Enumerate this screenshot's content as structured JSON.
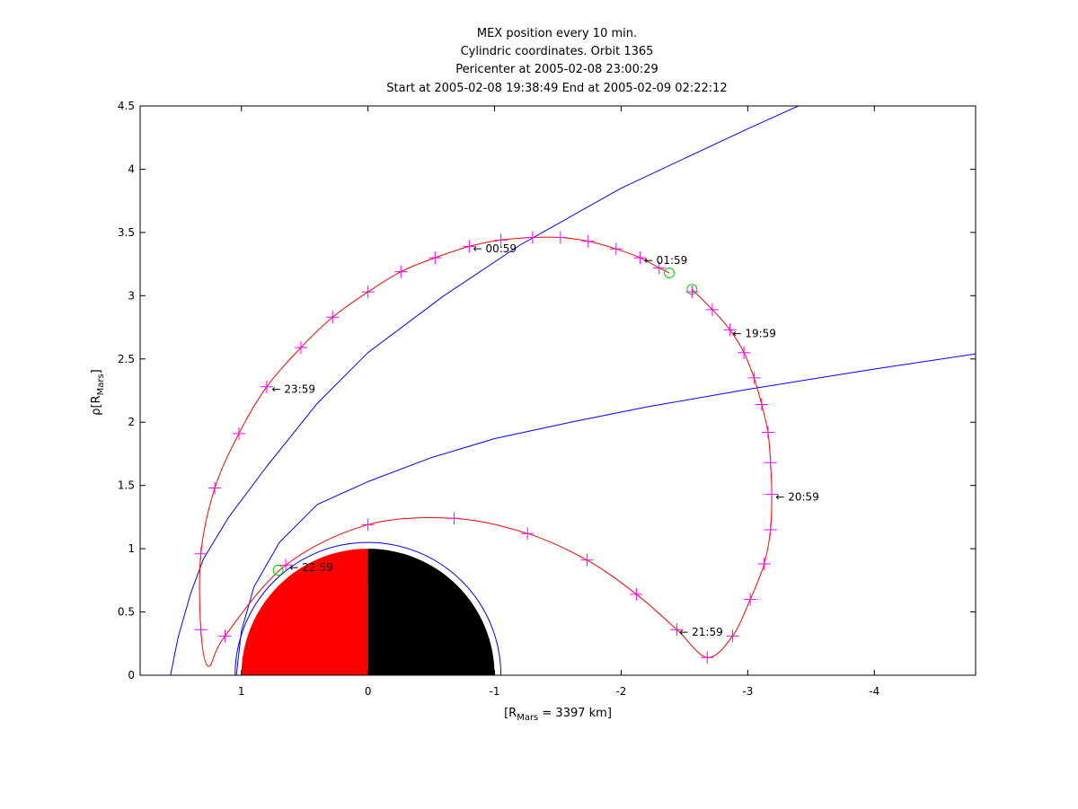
{
  "chart_data": {
    "type": "line",
    "title_lines": [
      "MEX position every 10 min.",
      "Cylindric coordinates. Orbit 1365",
      "Pericenter at 2005-02-08 23:00:29",
      "Start at 2005-02-08 19:38:49 End at 2005-02-09 02:22:12"
    ],
    "xlabel": {
      "prefix": "[R",
      "sub": "Mars",
      "suffix": " = 3397 km]"
    },
    "ylabel": {
      "prefix": "ρ[R",
      "sub": "Mars",
      "suffix": "]"
    },
    "xlim": [
      1.8,
      -4.8
    ],
    "ylim": [
      0,
      4.5
    ],
    "x_reversed": true,
    "grid": false,
    "xticks": [
      1,
      0,
      -1,
      -2,
      -3,
      -4
    ],
    "xtick_labels": [
      "1",
      "0",
      "-1",
      "-2",
      "-3",
      "-4"
    ],
    "yticks": [
      0,
      0.5,
      1,
      1.5,
      2,
      2.5,
      3,
      3.5,
      4,
      4.5
    ],
    "ytick_labels": [
      "0",
      "0.5",
      "1",
      "1.5",
      "2",
      "2.5",
      "3",
      "3.5",
      "4",
      "4.5"
    ],
    "colors": {
      "orbit": "#ff0000",
      "markers": "#ff00ff",
      "boundaries": "#0000ff",
      "endpoints": "#00cc00",
      "mars_day": "#ff0000",
      "mars_night": "#000000"
    },
    "planet": {
      "radius": 1
    },
    "boundary_circle_radius": 1.05,
    "bow_shock": [
      {
        "x": 1.56,
        "y": 0.0
      },
      {
        "x": 1.5,
        "y": 0.3
      },
      {
        "x": 1.4,
        "y": 0.65
      },
      {
        "x": 1.3,
        "y": 0.92
      },
      {
        "x": 1.1,
        "y": 1.25
      },
      {
        "x": 0.8,
        "y": 1.65
      },
      {
        "x": 0.4,
        "y": 2.15
      },
      {
        "x": 0.0,
        "y": 2.55
      },
      {
        "x": -0.6,
        "y": 3.0
      },
      {
        "x": -1.2,
        "y": 3.4
      },
      {
        "x": -2.0,
        "y": 3.85
      },
      {
        "x": -3.0,
        "y": 4.32
      },
      {
        "x": -3.4,
        "y": 4.5
      }
    ],
    "mpb": [
      {
        "x": 1.04,
        "y": 0.0
      },
      {
        "x": 1.0,
        "y": 0.35
      },
      {
        "x": 0.9,
        "y": 0.7
      },
      {
        "x": 0.7,
        "y": 1.05
      },
      {
        "x": 0.4,
        "y": 1.35
      },
      {
        "x": 0.0,
        "y": 1.53
      },
      {
        "x": -0.5,
        "y": 1.72
      },
      {
        "x": -1.0,
        "y": 1.87
      },
      {
        "x": -1.6,
        "y": 2.0
      },
      {
        "x": -2.2,
        "y": 2.12
      },
      {
        "x": -3.0,
        "y": 2.26
      },
      {
        "x": -4.0,
        "y": 2.42
      },
      {
        "x": -4.8,
        "y": 2.54
      }
    ],
    "orbit": [
      {
        "x": -2.56,
        "y": 3.05
      },
      {
        "x": -2.72,
        "y": 2.89
      },
      {
        "x": -2.86,
        "y": 2.73
      },
      {
        "x": -2.97,
        "y": 2.55
      },
      {
        "x": -3.05,
        "y": 2.35
      },
      {
        "x": -3.11,
        "y": 2.14
      },
      {
        "x": -3.16,
        "y": 1.92
      },
      {
        "x": -3.18,
        "y": 1.68
      },
      {
        "x": -3.19,
        "y": 1.43
      },
      {
        "x": -3.18,
        "y": 1.15
      },
      {
        "x": -3.13,
        "y": 0.88
      },
      {
        "x": -3.02,
        "y": 0.6
      },
      {
        "x": -2.88,
        "y": 0.31
      },
      {
        "x": -2.68,
        "y": 0.14
      },
      {
        "x": -2.44,
        "y": 0.36
      },
      {
        "x": -2.12,
        "y": 0.64
      },
      {
        "x": -1.73,
        "y": 0.91
      },
      {
        "x": -1.26,
        "y": 1.12
      },
      {
        "x": -0.68,
        "y": 1.24
      },
      {
        "x": 0.0,
        "y": 1.19
      },
      {
        "x": 0.65,
        "y": 0.87
      },
      {
        "x": 1.13,
        "y": 0.31
      },
      {
        "x": 1.26,
        "y": 0.07
      },
      {
        "x": 1.32,
        "y": 0.36
      },
      {
        "x": 1.32,
        "y": 0.96
      },
      {
        "x": 1.21,
        "y": 1.48
      },
      {
        "x": 1.02,
        "y": 1.91
      },
      {
        "x": 0.8,
        "y": 2.28
      },
      {
        "x": 0.53,
        "y": 2.59
      },
      {
        "x": 0.28,
        "y": 2.83
      },
      {
        "x": 0.0,
        "y": 3.03
      },
      {
        "x": -0.26,
        "y": 3.19
      },
      {
        "x": -0.53,
        "y": 3.3
      },
      {
        "x": -0.8,
        "y": 3.39
      },
      {
        "x": -1.05,
        "y": 3.44
      },
      {
        "x": -1.3,
        "y": 3.46
      },
      {
        "x": -1.52,
        "y": 3.46
      },
      {
        "x": -1.74,
        "y": 3.43
      },
      {
        "x": -1.96,
        "y": 3.37
      },
      {
        "x": -2.15,
        "y": 3.3
      },
      {
        "x": -2.3,
        "y": 3.22
      },
      {
        "x": -2.38,
        "y": 3.18
      }
    ],
    "markers": [
      {
        "x": -2.56,
        "y": 3.03
      },
      {
        "x": -2.72,
        "y": 2.89
      },
      {
        "x": -2.86,
        "y": 2.73
      },
      {
        "x": -2.97,
        "y": 2.55
      },
      {
        "x": -3.05,
        "y": 2.35
      },
      {
        "x": -3.11,
        "y": 2.14
      },
      {
        "x": -3.16,
        "y": 1.92
      },
      {
        "x": -3.18,
        "y": 1.68
      },
      {
        "x": -3.19,
        "y": 1.43
      },
      {
        "x": -3.18,
        "y": 1.15
      },
      {
        "x": -3.13,
        "y": 0.88
      },
      {
        "x": -3.02,
        "y": 0.6
      },
      {
        "x": -2.88,
        "y": 0.31
      },
      {
        "x": -2.68,
        "y": 0.14
      },
      {
        "x": -2.44,
        "y": 0.36
      },
      {
        "x": -2.12,
        "y": 0.64
      },
      {
        "x": -1.73,
        "y": 0.91
      },
      {
        "x": -1.26,
        "y": 1.12
      },
      {
        "x": -0.68,
        "y": 1.24
      },
      {
        "x": 0.0,
        "y": 1.19
      },
      {
        "x": 0.65,
        "y": 0.87
      },
      {
        "x": 1.13,
        "y": 0.31
      },
      {
        "x": 1.32,
        "y": 0.36
      },
      {
        "x": 1.32,
        "y": 0.96
      },
      {
        "x": 1.21,
        "y": 1.48
      },
      {
        "x": 1.02,
        "y": 1.91
      },
      {
        "x": 0.8,
        "y": 2.28
      },
      {
        "x": 0.53,
        "y": 2.59
      },
      {
        "x": 0.28,
        "y": 2.83
      },
      {
        "x": 0.0,
        "y": 3.03
      },
      {
        "x": -0.26,
        "y": 3.19
      },
      {
        "x": -0.53,
        "y": 3.3
      },
      {
        "x": -0.8,
        "y": 3.39
      },
      {
        "x": -1.05,
        "y": 3.44
      },
      {
        "x": -1.3,
        "y": 3.46
      },
      {
        "x": -1.52,
        "y": 3.46
      },
      {
        "x": -1.74,
        "y": 3.43
      },
      {
        "x": -1.96,
        "y": 3.37
      },
      {
        "x": -2.15,
        "y": 3.3
      },
      {
        "x": -2.3,
        "y": 3.22
      }
    ],
    "endpoints": [
      {
        "x": -2.56,
        "y": 3.05
      },
      {
        "x": -2.38,
        "y": 3.18
      },
      {
        "x": 0.71,
        "y": 0.83
      }
    ],
    "annotations": [
      {
        "text": "← 19:59",
        "x": -2.88,
        "y": 2.7
      },
      {
        "text": "← 20:59",
        "x": -3.22,
        "y": 1.41
      },
      {
        "text": "← 21:59",
        "x": -2.46,
        "y": 0.34
      },
      {
        "text": "← 22:59",
        "x": 0.62,
        "y": 0.85
      },
      {
        "text": "← 23:59",
        "x": 0.76,
        "y": 2.26
      },
      {
        "text": "← 00:59",
        "x": -0.83,
        "y": 3.37
      },
      {
        "text": "← 01:59",
        "x": -2.18,
        "y": 3.28
      }
    ]
  }
}
